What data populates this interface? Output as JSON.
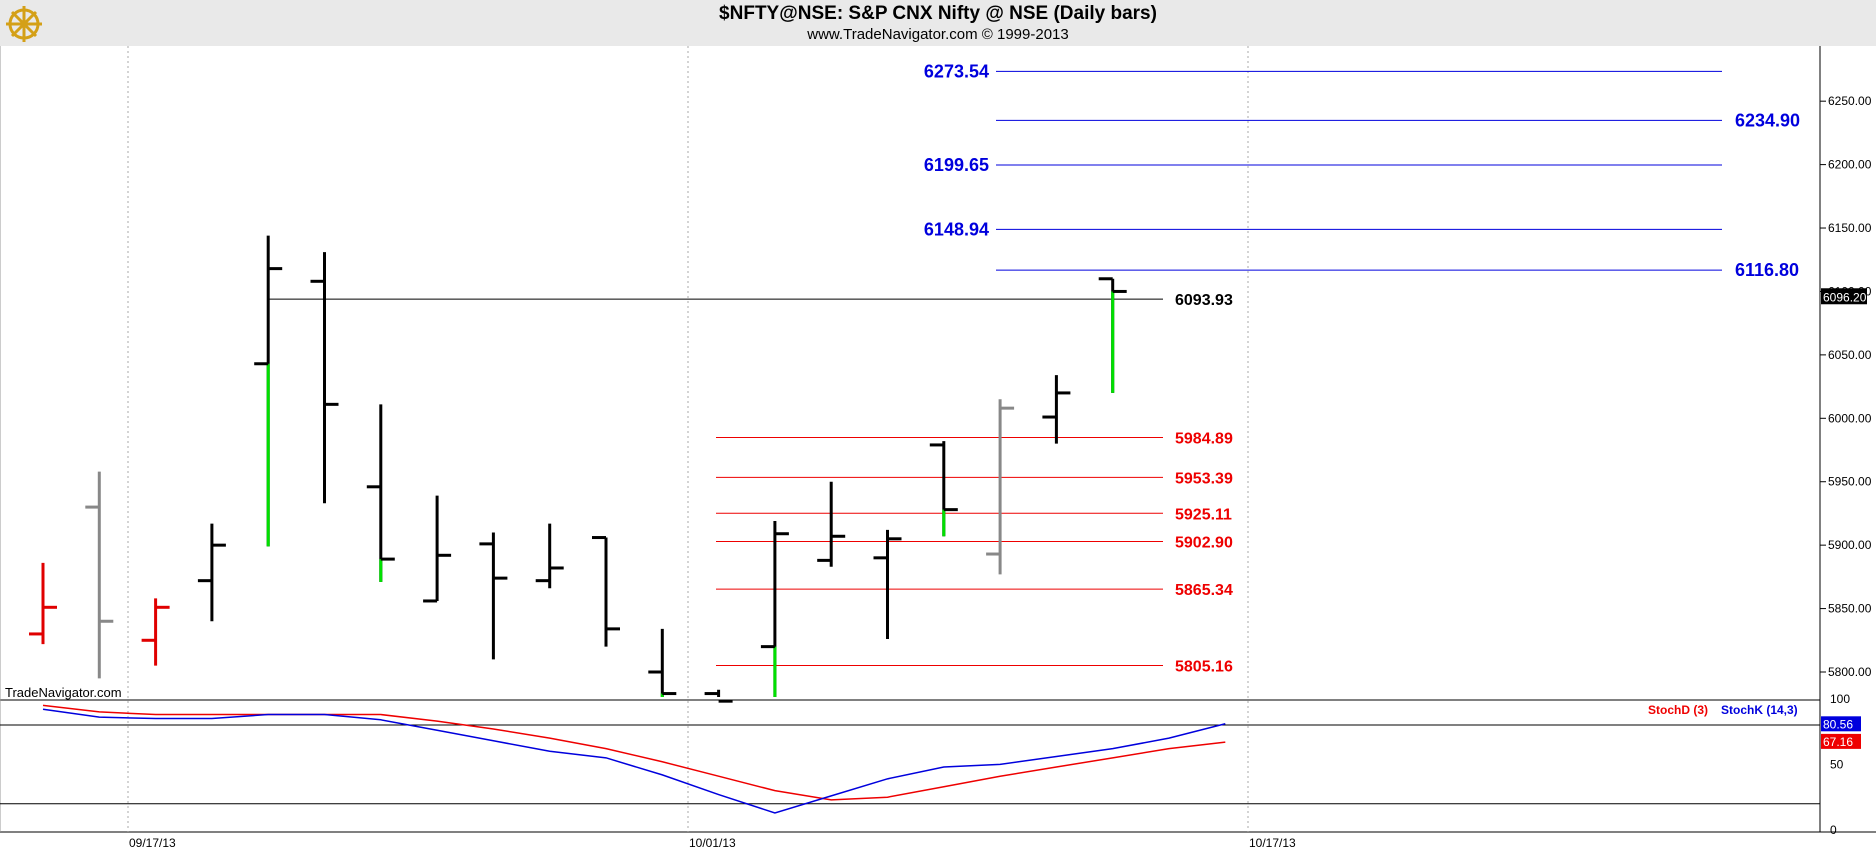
{
  "header": {
    "title": "$NFTY@NSE:  S&P CNX Nifty @ NSE  (Daily bars)",
    "subtitle": "www.TradeNavigator.com © 1999-2013"
  },
  "watermark": "TradeNavigator.com",
  "colors": {
    "up": "#00e000",
    "down": "#e00000",
    "neutral": "#888888",
    "bar": "#000000",
    "blue_level": "#0000dd",
    "red_level": "#ee0000",
    "stoch_d": "#ee0000",
    "stoch_k": "#0000dd",
    "header_bg": "#e9e9e9",
    "logo": "#d4a017"
  },
  "chart_data": [
    {
      "type": "ohlc",
      "symbol": "$NFTY@NSE",
      "y_ticks": [
        "5800.00",
        "5850.00",
        "5900.00",
        "5950.00",
        "6000.00",
        "6050.00",
        "6100.00",
        "6150.00",
        "6200.00",
        "6250.00"
      ],
      "ylim": [
        5765,
        6300
      ],
      "x_labels": [
        {
          "label": "09/17/13",
          "at": 2
        },
        {
          "label": "10/01/13",
          "at": 12
        },
        {
          "label": "10/17/13",
          "at": 22
        }
      ],
      "bars": [
        {
          "o": 5830,
          "h": 5886,
          "l": 5822,
          "c": 5851,
          "tail": "red"
        },
        {
          "o": 5930,
          "h": 5958,
          "l": 5795,
          "c": 5840,
          "tail": "gray"
        },
        {
          "o": 5825,
          "h": 5858,
          "l": 5805,
          "c": 5851,
          "tail": "red"
        },
        {
          "o": 5872,
          "h": 5917,
          "l": 5840,
          "c": 5900
        },
        {
          "o": 6043,
          "h": 6144,
          "l": 5899,
          "c": 6118,
          "tail": "green"
        },
        {
          "o": 6108,
          "h": 6131,
          "l": 5933,
          "c": 6011
        },
        {
          "o": 5946,
          "h": 6011,
          "l": 5871,
          "c": 5889,
          "tail": "green"
        },
        {
          "o": 5856,
          "h": 5939,
          "l": 5856,
          "c": 5892
        },
        {
          "o": 5901,
          "h": 5910,
          "l": 5810,
          "c": 5874
        },
        {
          "o": 5872,
          "h": 5917,
          "l": 5866,
          "c": 5882
        },
        {
          "o": 5906,
          "h": 5906,
          "l": 5820,
          "c": 5834
        },
        {
          "o": 5800,
          "h": 5834,
          "l": 5770,
          "c": 5783,
          "tail": "green"
        },
        {
          "o": 5783,
          "h": 5786,
          "l": 5765,
          "c": 5777
        },
        {
          "o": 5820,
          "h": 5919,
          "l": 5777,
          "c": 5909,
          "tail": "green"
        },
        {
          "o": 5888,
          "h": 5950,
          "l": 5883,
          "c": 5907
        },
        {
          "o": 5890,
          "h": 5912,
          "l": 5826,
          "c": 5905
        },
        {
          "o": 5979,
          "h": 5982,
          "l": 5907,
          "c": 5928,
          "tail": "green"
        },
        {
          "o": 5893,
          "h": 6015,
          "l": 5877,
          "c": 6008,
          "tail": "gray"
        },
        {
          "o": 6001,
          "h": 6034,
          "l": 5980,
          "c": 6020
        },
        {
          "o": 6110,
          "h": 6110,
          "l": 6020,
          "c": 6100,
          "tail": "green"
        }
      ],
      "last_price": "6096.20",
      "reference_line": {
        "value": 6093.93,
        "label": "6093.93"
      },
      "blue_levels": [
        {
          "value": 6273.54,
          "label": "6273.54",
          "side": "left"
        },
        {
          "value": 6234.9,
          "label": "6234.90",
          "side": "right"
        },
        {
          "value": 6199.65,
          "label": "6199.65",
          "side": "left"
        },
        {
          "value": 6148.94,
          "label": "6148.94",
          "side": "left"
        },
        {
          "value": 6116.8,
          "label": "6116.80",
          "side": "right"
        }
      ],
      "red_levels": [
        {
          "value": 5984.89,
          "label": "5984.89"
        },
        {
          "value": 5953.39,
          "label": "5953.39"
        },
        {
          "value": 5925.11,
          "label": "5925.11"
        },
        {
          "value": 5902.9,
          "label": "5902.90"
        },
        {
          "value": 5865.34,
          "label": "5865.34"
        },
        {
          "value": 5805.16,
          "label": "5805.16"
        }
      ],
      "grid": "vertical dashed at date labels"
    },
    {
      "type": "line",
      "name": "Stochastic",
      "y_ticks": [
        "0",
        "50",
        "100"
      ],
      "ylim": [
        0,
        100
      ],
      "bands": [
        80,
        20
      ],
      "series": [
        {
          "name": "StochD (3)",
          "color": "#ee0000",
          "values": [
            95,
            90,
            88,
            88,
            88,
            88,
            88,
            83,
            77,
            70,
            62,
            52,
            41,
            30,
            23,
            25,
            33,
            41,
            48,
            55,
            62,
            67
          ]
        },
        {
          "name": "StochK (14,3)",
          "color": "#0000dd",
          "values": [
            92,
            86,
            85,
            85,
            88,
            88,
            84,
            76,
            68,
            60,
            55,
            42,
            27,
            13,
            26,
            39,
            48,
            50,
            56,
            62,
            70,
            81
          ]
        }
      ],
      "last_values": {
        "k": "80.56",
        "d": "67.16"
      }
    }
  ]
}
